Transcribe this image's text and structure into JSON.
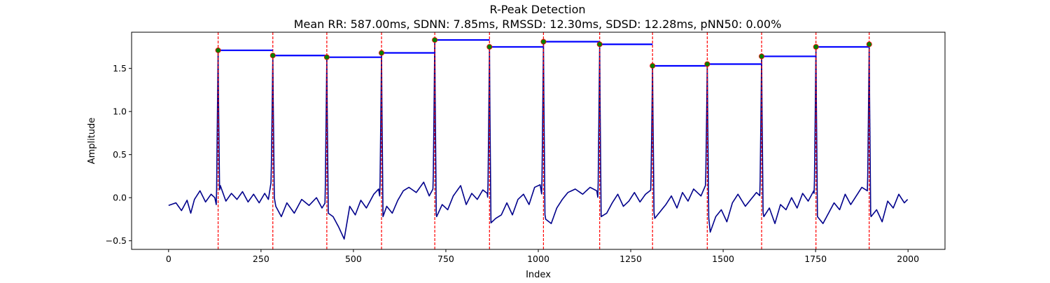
{
  "chart_data": {
    "type": "line",
    "title": "R-Peak Detection",
    "subtitle": "Mean RR: 587.00ms, SDNN: 7.85ms, RMSSD: 12.30ms, SDSD: 12.28ms, pNN50: 0.00%",
    "xlabel": "Index",
    "ylabel": "Amplitude",
    "xlim": [
      -100,
      2100
    ],
    "ylim": [
      -0.6,
      1.92
    ],
    "x_ticks": [
      0,
      250,
      500,
      750,
      1000,
      1250,
      1500,
      1750,
      2000
    ],
    "y_ticks": [
      -0.5,
      0.0,
      0.5,
      1.0,
      1.5
    ],
    "grid": false,
    "signal": {
      "color": "#00008b",
      "length": 2000,
      "baseline_samples": [
        [
          0,
          -0.09
        ],
        [
          20,
          -0.06
        ],
        [
          35,
          -0.15
        ],
        [
          50,
          -0.03
        ],
        [
          60,
          -0.18
        ],
        [
          70,
          -0.02
        ],
        [
          85,
          0.08
        ],
        [
          100,
          -0.05
        ],
        [
          115,
          0.04
        ],
        [
          125,
          0.0
        ],
        [
          130,
          -0.1
        ],
        [
          140,
          0.14
        ],
        [
          155,
          -0.04
        ],
        [
          170,
          0.05
        ],
        [
          185,
          -0.02
        ],
        [
          200,
          0.07
        ],
        [
          215,
          -0.05
        ],
        [
          230,
          0.04
        ],
        [
          245,
          -0.06
        ],
        [
          260,
          0.05
        ],
        [
          270,
          -0.02
        ],
        [
          278,
          0.2
        ],
        [
          290,
          -0.1
        ],
        [
          305,
          -0.22
        ],
        [
          320,
          -0.06
        ],
        [
          340,
          -0.18
        ],
        [
          360,
          -0.02
        ],
        [
          380,
          -0.09
        ],
        [
          400,
          0.0
        ],
        [
          415,
          -0.12
        ],
        [
          425,
          -0.05
        ],
        [
          432,
          -0.18
        ],
        [
          445,
          -0.22
        ],
        [
          460,
          -0.34
        ],
        [
          475,
          -0.48
        ],
        [
          490,
          -0.1
        ],
        [
          505,
          -0.2
        ],
        [
          520,
          -0.03
        ],
        [
          535,
          -0.12
        ],
        [
          555,
          0.04
        ],
        [
          568,
          0.1
        ],
        [
          580,
          -0.22
        ],
        [
          590,
          -0.1
        ],
        [
          605,
          -0.18
        ],
        [
          620,
          -0.03
        ],
        [
          635,
          0.08
        ],
        [
          650,
          0.12
        ],
        [
          670,
          0.06
        ],
        [
          690,
          0.18
        ],
        [
          705,
          0.02
        ],
        [
          715,
          0.1
        ],
        [
          725,
          -0.22
        ],
        [
          740,
          -0.08
        ],
        [
          755,
          -0.14
        ],
        [
          770,
          0.02
        ],
        [
          790,
          0.14
        ],
        [
          805,
          -0.08
        ],
        [
          820,
          0.05
        ],
        [
          835,
          -0.02
        ],
        [
          850,
          0.09
        ],
        [
          862,
          0.05
        ],
        [
          870,
          -0.3
        ],
        [
          885,
          -0.24
        ],
        [
          900,
          -0.2
        ],
        [
          915,
          -0.06
        ],
        [
          930,
          -0.2
        ],
        [
          945,
          -0.02
        ],
        [
          960,
          0.04
        ],
        [
          975,
          -0.08
        ],
        [
          990,
          0.12
        ],
        [
          1005,
          0.15
        ],
        [
          1020,
          -0.25
        ],
        [
          1035,
          -0.3
        ],
        [
          1050,
          -0.12
        ],
        [
          1065,
          -0.02
        ],
        [
          1080,
          0.06
        ],
        [
          1100,
          0.1
        ],
        [
          1120,
          0.04
        ],
        [
          1140,
          0.12
        ],
        [
          1158,
          0.08
        ],
        [
          1170,
          -0.22
        ],
        [
          1185,
          -0.18
        ],
        [
          1200,
          -0.06
        ],
        [
          1215,
          0.04
        ],
        [
          1230,
          -0.1
        ],
        [
          1245,
          -0.04
        ],
        [
          1260,
          0.06
        ],
        [
          1275,
          -0.05
        ],
        [
          1290,
          0.04
        ],
        [
          1305,
          0.09
        ],
        [
          1315,
          -0.24
        ],
        [
          1330,
          -0.16
        ],
        [
          1345,
          -0.08
        ],
        [
          1360,
          0.02
        ],
        [
          1375,
          -0.12
        ],
        [
          1390,
          0.06
        ],
        [
          1405,
          -0.04
        ],
        [
          1420,
          0.1
        ],
        [
          1440,
          0.02
        ],
        [
          1452,
          0.14
        ],
        [
          1465,
          -0.4
        ],
        [
          1480,
          -0.22
        ],
        [
          1495,
          -0.14
        ],
        [
          1510,
          -0.28
        ],
        [
          1525,
          -0.06
        ],
        [
          1540,
          0.04
        ],
        [
          1560,
          -0.1
        ],
        [
          1575,
          -0.02
        ],
        [
          1590,
          0.06
        ],
        [
          1600,
          0.02
        ],
        [
          1610,
          -0.22
        ],
        [
          1625,
          -0.12
        ],
        [
          1640,
          -0.3
        ],
        [
          1655,
          -0.08
        ],
        [
          1670,
          -0.14
        ],
        [
          1685,
          0.0
        ],
        [
          1700,
          -0.12
        ],
        [
          1715,
          0.05
        ],
        [
          1730,
          -0.04
        ],
        [
          1745,
          0.08
        ],
        [
          1755,
          -0.22
        ],
        [
          1770,
          -0.3
        ],
        [
          1785,
          -0.18
        ],
        [
          1800,
          -0.06
        ],
        [
          1815,
          -0.14
        ],
        [
          1830,
          0.04
        ],
        [
          1845,
          -0.08
        ],
        [
          1860,
          0.02
        ],
        [
          1875,
          0.12
        ],
        [
          1890,
          0.08
        ],
        [
          1900,
          -0.22
        ],
        [
          1915,
          -0.14
        ],
        [
          1930,
          -0.28
        ],
        [
          1945,
          -0.04
        ],
        [
          1960,
          -0.12
        ],
        [
          1975,
          0.04
        ],
        [
          1990,
          -0.06
        ],
        [
          1999,
          -0.02
        ]
      ]
    },
    "r_peaks": {
      "marker_color": "#008000",
      "marker_edge": "#ff0000",
      "vline_color": "#ff0000",
      "points": [
        {
          "x": 134,
          "y": 1.71
        },
        {
          "x": 282,
          "y": 1.65
        },
        {
          "x": 428,
          "y": 1.63
        },
        {
          "x": 576,
          "y": 1.68
        },
        {
          "x": 720,
          "y": 1.83
        },
        {
          "x": 868,
          "y": 1.75
        },
        {
          "x": 1014,
          "y": 1.81
        },
        {
          "x": 1166,
          "y": 1.78
        },
        {
          "x": 1309,
          "y": 1.53
        },
        {
          "x": 1457,
          "y": 1.55
        },
        {
          "x": 1604,
          "y": 1.64
        },
        {
          "x": 1751,
          "y": 1.75
        },
        {
          "x": 1895,
          "y": 1.78
        }
      ]
    },
    "rr_intervals": {
      "color": "#0000ff",
      "segments": [
        {
          "x0": 134,
          "x1": 282,
          "y": 1.71
        },
        {
          "x0": 282,
          "x1": 428,
          "y": 1.65
        },
        {
          "x0": 428,
          "x1": 576,
          "y": 1.63
        },
        {
          "x0": 576,
          "x1": 720,
          "y": 1.68
        },
        {
          "x0": 720,
          "x1": 868,
          "y": 1.83
        },
        {
          "x0": 868,
          "x1": 1014,
          "y": 1.75
        },
        {
          "x0": 1014,
          "x1": 1166,
          "y": 1.81
        },
        {
          "x0": 1166,
          "x1": 1309,
          "y": 1.78
        },
        {
          "x0": 1309,
          "x1": 1457,
          "y": 1.53
        },
        {
          "x0": 1457,
          "x1": 1604,
          "y": 1.55
        },
        {
          "x0": 1604,
          "x1": 1751,
          "y": 1.64
        },
        {
          "x0": 1751,
          "x1": 1895,
          "y": 1.75
        }
      ]
    }
  }
}
